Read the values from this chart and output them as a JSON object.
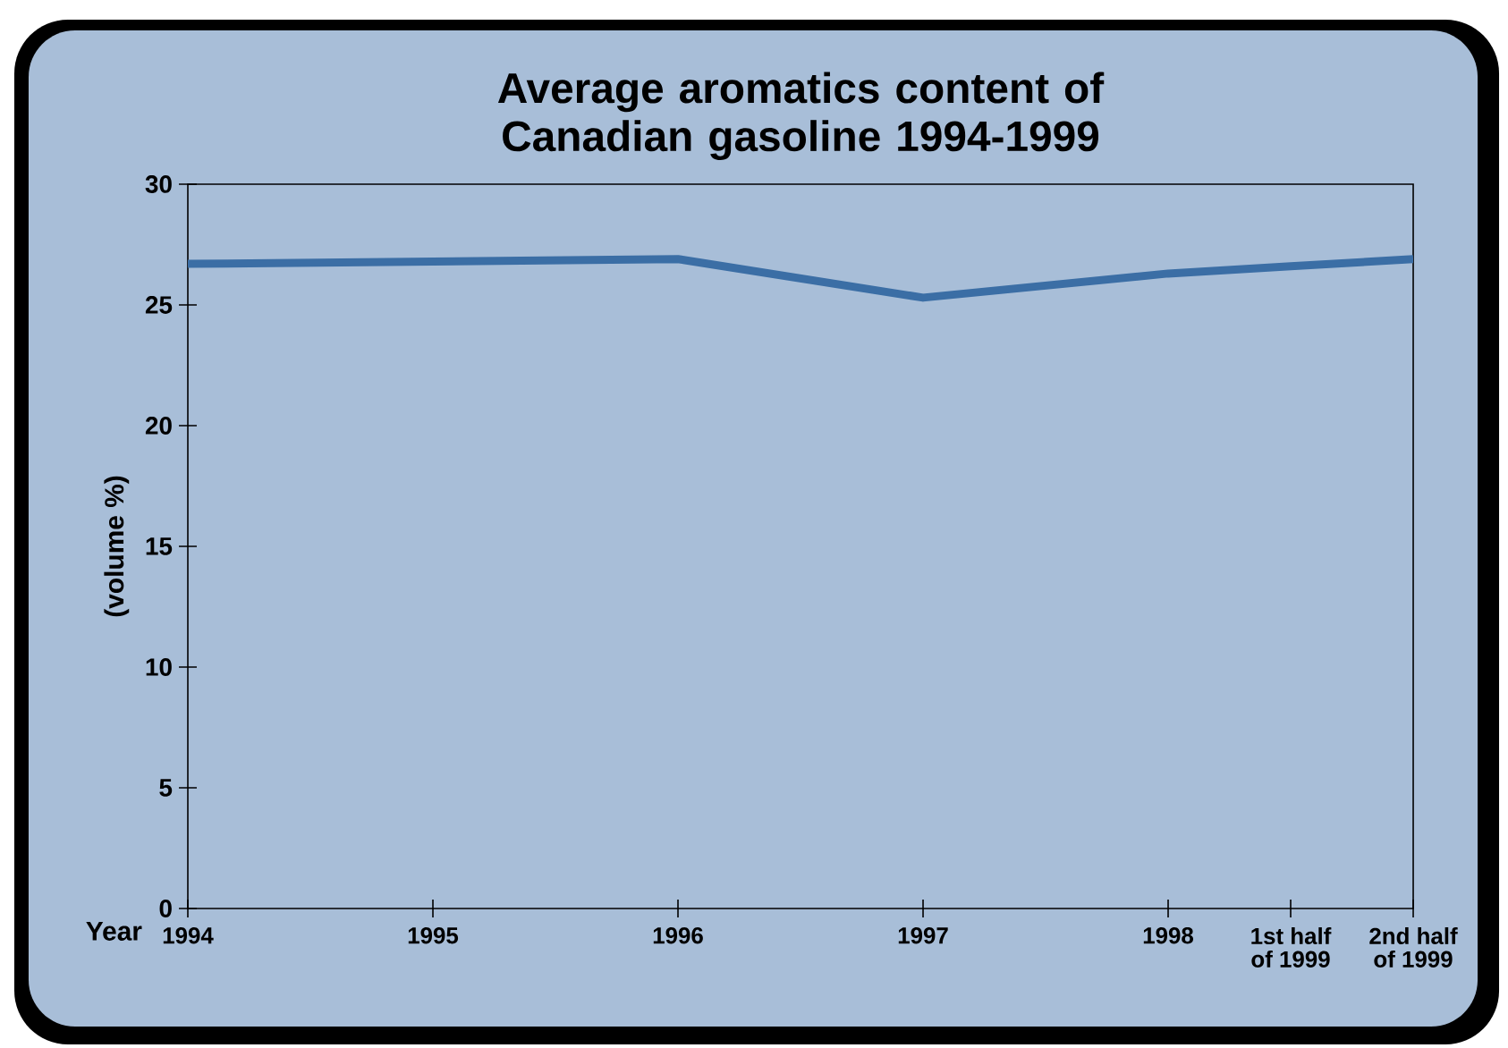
{
  "chart_data": {
    "type": "line",
    "title": "Average aromatics content of Canadian gasoline 1994-1999",
    "xlabel": "Year",
    "ylabel": "(volume %)",
    "x": [
      1994,
      1995,
      1996,
      1997,
      1998,
      1998.5,
      1999
    ],
    "series": [
      {
        "color": "#3b6ea5",
        "values": [
          26.7,
          26.8,
          26.9,
          25.3,
          26.3,
          26.6,
          26.9
        ]
      }
    ],
    "xlim": [
      1994,
      1999
    ],
    "ylim": [
      0,
      30
    ],
    "xticks": [
      {
        "value": 1994,
        "label": "1994"
      },
      {
        "value": 1995,
        "label": "1995"
      },
      {
        "value": 1996,
        "label": "1996"
      },
      {
        "value": 1997,
        "label": "1997"
      },
      {
        "value": 1998,
        "label": "1998"
      },
      {
        "value": 1998.5,
        "label": "1st half of 1999"
      },
      {
        "value": 1999,
        "label": "2nd half of 1999"
      }
    ],
    "yticks": [
      0,
      5,
      10,
      15,
      20,
      25,
      30
    ],
    "grid": false,
    "legend": false,
    "marker": "none",
    "line_style": "solid"
  }
}
